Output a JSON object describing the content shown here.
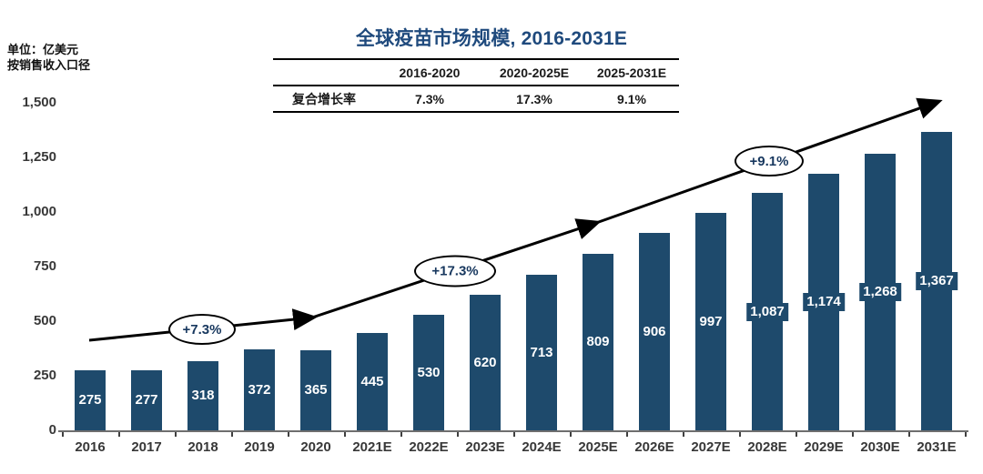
{
  "title": "全球疫苗市场规模, 2016-2031E",
  "unit_label": {
    "line1": "单位：亿美元",
    "line2": "按销售收入口径"
  },
  "cagr_table": {
    "row_label": "复合增长率",
    "headers": [
      "",
      "2016-2020",
      "2020-2025E",
      "2025-2031E"
    ],
    "values": [
      "7.3%",
      "17.3%",
      "9.1%"
    ]
  },
  "annotations": [
    "+7.3%",
    "+17.3%",
    "+9.1%"
  ],
  "chart_data": {
    "type": "bar",
    "title": "全球疫苗市场规模, 2016-2031E",
    "xlabel": "",
    "ylabel": "亿美元",
    "categories": [
      "2016",
      "2017",
      "2018",
      "2019",
      "2020",
      "2021E",
      "2022E",
      "2023E",
      "2024E",
      "2025E",
      "2026E",
      "2027E",
      "2028E",
      "2029E",
      "2030E",
      "2031E"
    ],
    "values": [
      275,
      277,
      318,
      372,
      365,
      445,
      530,
      620,
      713,
      809,
      906,
      997,
      1087,
      1174,
      1268,
      1367
    ],
    "value_labels": [
      "275",
      "277",
      "318",
      "372",
      "365",
      "445",
      "530",
      "620",
      "713",
      "809",
      "906",
      "997",
      "1,087",
      "1,174",
      "1,268",
      "1,367"
    ],
    "ylim": [
      0,
      1500
    ],
    "y_ticks": [
      0,
      250,
      500,
      750,
      1000,
      1250,
      1500
    ],
    "y_tick_labels": [
      "0",
      "250",
      "500",
      "750",
      "1,000",
      "1,250",
      "1,500"
    ],
    "grid": false,
    "legend": false,
    "bar_color": "#1e4a6c",
    "cagr_annotations": [
      {
        "period": "2016-2020",
        "label": "+7.3%"
      },
      {
        "period": "2020-2025E",
        "label": "+17.3%"
      },
      {
        "period": "2025-2031E",
        "label": "+9.1%"
      }
    ]
  },
  "colors": {
    "bar": "#1e4a6c",
    "title_text": "#1f4a7d",
    "annotation_text": "#17375e",
    "arrow": "#000000",
    "axis_line": "#6e6e6e",
    "value_label_text": "#ffffff"
  }
}
